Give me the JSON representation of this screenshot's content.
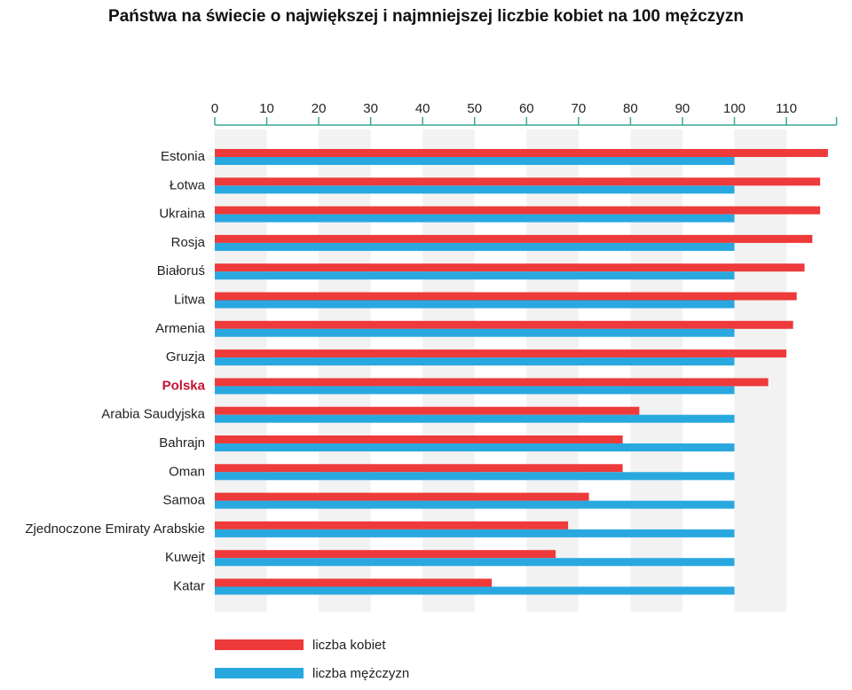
{
  "chart_data": {
    "type": "bar",
    "orientation": "horizontal",
    "title": "Państwa na świecie o największej i najmniejszej liczbie kobiet na 100 mężczyzn",
    "categories": [
      "Estonia",
      "Łotwa",
      "Ukraina",
      "Rosja",
      "Białoruś",
      "Litwa",
      "Armenia",
      "Gruzja",
      "Polska",
      "Arabia Saudyjska",
      "Bahrajn",
      "Oman",
      "Samoa",
      "Zjednoczone Emiraty Arabskie",
      "Kuwejt",
      "Katar"
    ],
    "highlighted_category": "Polska",
    "series": [
      {
        "name": "liczba kobiet",
        "color": "#ee3a3a",
        "values": [
          118,
          116.5,
          116.5,
          115,
          113.5,
          112,
          111.3,
          110,
          106.5,
          81.7,
          78.5,
          78.5,
          72,
          68,
          65.6,
          53.3
        ]
      },
      {
        "name": "liczba mężczyzn",
        "color": "#29a8e0",
        "values": [
          100,
          100,
          100,
          100,
          100,
          100,
          100,
          100,
          100,
          100,
          100,
          100,
          100,
          100,
          100,
          100
        ]
      }
    ],
    "xlim": [
      0,
      120
    ],
    "xticks": [
      0,
      10,
      20,
      30,
      40,
      50,
      60,
      70,
      80,
      90,
      100,
      110
    ],
    "axis_position": "top",
    "axis_color": "#3aa59a",
    "highlight_color": "#c8102e",
    "grid": "alternating shaded columns",
    "legend_position": "bottom-left"
  }
}
